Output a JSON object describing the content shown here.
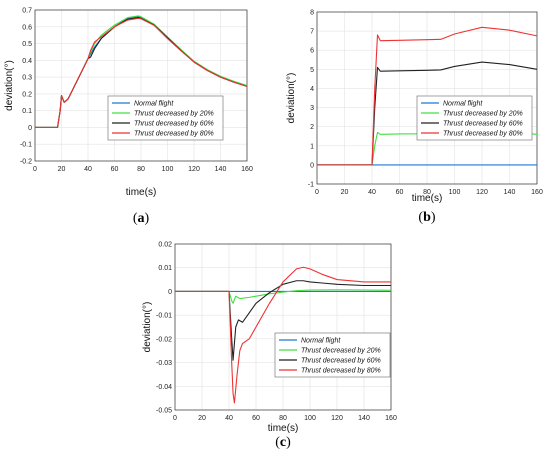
{
  "chart_data": [
    {
      "panel_label": "(a)",
      "type": "line",
      "xlabel": "time(s)",
      "ylabel": "deviation(°)",
      "xlim": [
        0,
        160
      ],
      "ylim": [
        -0.2,
        0.7
      ],
      "xticks": [
        0,
        20,
        40,
        60,
        80,
        100,
        120,
        140,
        160
      ],
      "yticks": [
        -0.2,
        -0.1,
        0,
        0.1,
        0.2,
        0.3,
        0.4,
        0.5,
        0.6,
        0.7
      ],
      "yticklabels": [
        "-0.2",
        "-0.1",
        "0",
        "0.1",
        "0.2",
        "0.3",
        "0.4",
        "0.5",
        "0.6",
        "0.7"
      ],
      "grid": true,
      "legend_position": "middle-left",
      "series": [
        {
          "name": "Normal flight",
          "color": "#1f77d4",
          "x": [
            0,
            17,
            19,
            20,
            22,
            25,
            30,
            35,
            40,
            45,
            50,
            60,
            70,
            77,
            80,
            90,
            100,
            110,
            120,
            130,
            140,
            150,
            160
          ],
          "y": [
            0,
            0,
            0.1,
            0.19,
            0.15,
            0.17,
            0.25,
            0.33,
            0.41,
            0.48,
            0.53,
            0.6,
            0.65,
            0.66,
            0.655,
            0.61,
            0.53,
            0.46,
            0.39,
            0.34,
            0.3,
            0.27,
            0.245
          ]
        },
        {
          "name": "Thrust decreased by 20%",
          "color": "#40e040",
          "x": [
            0,
            17,
            19,
            20,
            22,
            25,
            30,
            35,
            40,
            42,
            45,
            50,
            60,
            70,
            78,
            80,
            90,
            100,
            110,
            120,
            130,
            140,
            150,
            160
          ],
          "y": [
            0,
            0,
            0.1,
            0.19,
            0.15,
            0.17,
            0.25,
            0.33,
            0.41,
            0.45,
            0.5,
            0.55,
            0.61,
            0.655,
            0.665,
            0.66,
            0.615,
            0.54,
            0.465,
            0.395,
            0.345,
            0.305,
            0.275,
            0.25
          ]
        },
        {
          "name": "Thrust decreased by 60%",
          "color": "#222222",
          "x": [
            0,
            17,
            19,
            20,
            22,
            25,
            30,
            35,
            40,
            42,
            45,
            50,
            60,
            70,
            78,
            80,
            90,
            100,
            110,
            120,
            130,
            140,
            150,
            160
          ],
          "y": [
            0,
            0,
            0.1,
            0.19,
            0.15,
            0.17,
            0.25,
            0.33,
            0.41,
            0.42,
            0.47,
            0.53,
            0.6,
            0.645,
            0.655,
            0.65,
            0.61,
            0.535,
            0.46,
            0.39,
            0.34,
            0.3,
            0.27,
            0.245
          ]
        },
        {
          "name": "Thrust decreased by 80%",
          "color": "#ee3333",
          "x": [
            0,
            17,
            19,
            20,
            22,
            25,
            30,
            35,
            40,
            42,
            45,
            50,
            60,
            70,
            78,
            80,
            90,
            100,
            110,
            120,
            130,
            140,
            150,
            160
          ],
          "y": [
            0,
            0,
            0.1,
            0.19,
            0.15,
            0.17,
            0.25,
            0.33,
            0.41,
            0.46,
            0.51,
            0.54,
            0.6,
            0.64,
            0.65,
            0.648,
            0.608,
            0.53,
            0.458,
            0.39,
            0.34,
            0.3,
            0.27,
            0.245
          ]
        }
      ]
    },
    {
      "panel_label": "(b)",
      "type": "line",
      "xlabel": "time(s)",
      "ylabel": "deviation(°)",
      "xlim": [
        0,
        160
      ],
      "ylim": [
        -1,
        8
      ],
      "xticks": [
        0,
        20,
        40,
        60,
        80,
        100,
        120,
        140,
        160
      ],
      "yticks": [
        -1,
        0,
        1,
        2,
        3,
        4,
        5,
        6,
        7,
        8
      ],
      "yticklabels": [
        "-1",
        "0",
        "1",
        "2",
        "3",
        "4",
        "5",
        "6",
        "7",
        "8"
      ],
      "grid": true,
      "legend_position": "middle-right",
      "series": [
        {
          "name": "Normal flight",
          "color": "#1f77d4",
          "x": [
            0,
            160
          ],
          "y": [
            0,
            0
          ]
        },
        {
          "name": "Thrust decreased by 20%",
          "color": "#40e040",
          "x": [
            0,
            40,
            42,
            44,
            46,
            60,
            80,
            90,
            100,
            120,
            140,
            160
          ],
          "y": [
            0,
            0,
            1.0,
            1.7,
            1.6,
            1.62,
            1.63,
            1.64,
            1.7,
            1.78,
            1.72,
            1.6
          ]
        },
        {
          "name": "Thrust decreased by 60%",
          "color": "#222222",
          "x": [
            0,
            40,
            42,
            44,
            46,
            60,
            80,
            90,
            100,
            120,
            140,
            160
          ],
          "y": [
            0,
            0,
            3.0,
            5.1,
            4.9,
            4.92,
            4.95,
            4.97,
            5.15,
            5.38,
            5.25,
            5.0
          ]
        },
        {
          "name": "Thrust decreased by 80%",
          "color": "#ee3333",
          "x": [
            0,
            40,
            42,
            44,
            46,
            60,
            80,
            90,
            100,
            120,
            140,
            160
          ],
          "y": [
            0,
            0,
            4.0,
            6.8,
            6.5,
            6.52,
            6.55,
            6.57,
            6.85,
            7.2,
            7.05,
            6.75
          ]
        }
      ]
    },
    {
      "panel_label": "(c)",
      "type": "line",
      "xlabel": "time(s)",
      "ylabel": "deviation(°)",
      "xlim": [
        0,
        160
      ],
      "ylim": [
        -0.05,
        0.02
      ],
      "xticks": [
        0,
        20,
        40,
        60,
        80,
        100,
        120,
        140,
        160
      ],
      "yticks": [
        -0.05,
        -0.04,
        -0.03,
        -0.02,
        -0.01,
        0,
        0.01,
        0.02
      ],
      "yticklabels": [
        "-0.05",
        "-0.04",
        "-0.03",
        "-0.02",
        "-0.01",
        "0",
        "0.01",
        "0.02"
      ],
      "grid": true,
      "legend_position": "bottom-right",
      "series": [
        {
          "name": "Normal flight",
          "color": "#1f77d4",
          "x": [
            0,
            160
          ],
          "y": [
            0,
            0
          ]
        },
        {
          "name": "Thrust decreased by 20%",
          "color": "#40e040",
          "x": [
            0,
            40,
            42,
            43,
            45,
            48,
            55,
            60,
            70,
            80,
            90,
            100,
            120,
            140,
            160
          ],
          "y": [
            0,
            0,
            -0.004,
            -0.005,
            -0.002,
            -0.003,
            -0.0025,
            -0.002,
            -0.001,
            -0.0003,
            0.0003,
            0.0006,
            0.0007,
            0.0006,
            0.0005
          ]
        },
        {
          "name": "Thrust decreased by 60%",
          "color": "#222222",
          "x": [
            0,
            40,
            42,
            43,
            45,
            47,
            50,
            55,
            60,
            70,
            80,
            90,
            95,
            100,
            110,
            120,
            140,
            160
          ],
          "y": [
            0,
            0,
            -0.02,
            -0.029,
            -0.015,
            -0.012,
            -0.013,
            -0.009,
            -0.005,
            -0.0005,
            0.003,
            0.0045,
            0.0045,
            0.004,
            0.0035,
            0.003,
            0.0025,
            0.0025
          ]
        },
        {
          "name": "Thrust decreased by 80%",
          "color": "#ee3333",
          "x": [
            0,
            40,
            42,
            43,
            44,
            46,
            48,
            50,
            55,
            60,
            70,
            80,
            90,
            95,
            100,
            110,
            120,
            140,
            160
          ],
          "y": [
            0,
            0,
            -0.03,
            -0.043,
            -0.047,
            -0.035,
            -0.025,
            -0.022,
            -0.02,
            -0.015,
            -0.005,
            0.004,
            0.0095,
            0.0102,
            0.0095,
            0.007,
            0.005,
            0.004,
            0.004
          ]
        }
      ]
    }
  ]
}
